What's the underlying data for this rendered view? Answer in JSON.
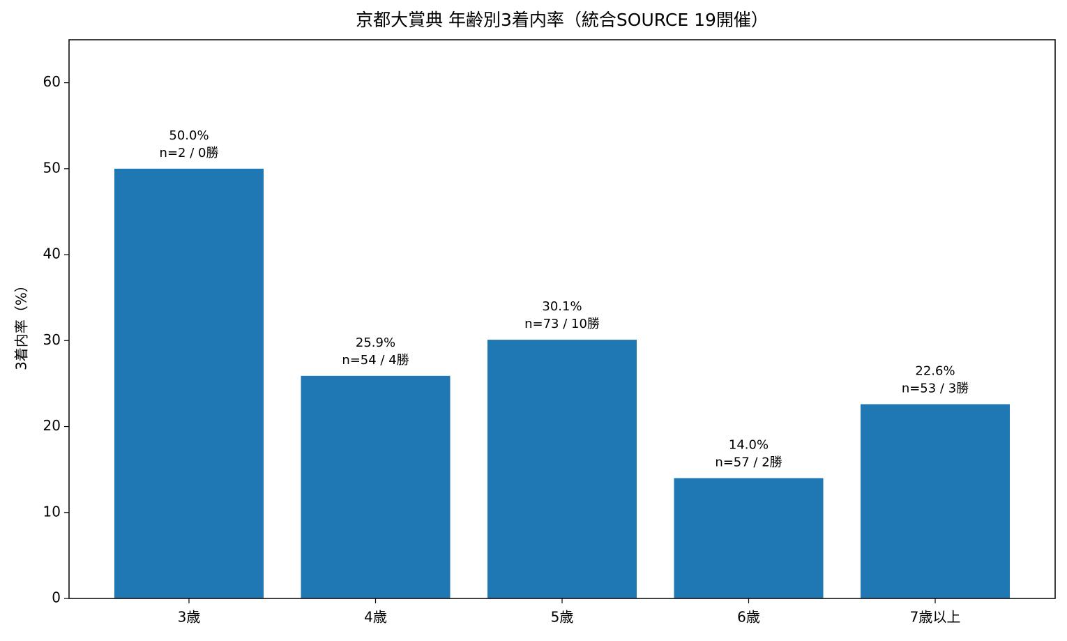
{
  "chart_data": {
    "type": "bar",
    "title": "京都大賞典 年齢別3着内率（統合SOURCE 19開催）",
    "y_label": "3着内率（%）",
    "categories": [
      "3歳",
      "4歳",
      "5歳",
      "6歳",
      "7歳以上"
    ],
    "values": [
      50.0,
      25.9,
      30.1,
      14.0,
      22.6
    ],
    "value_labels": [
      "50.0%",
      "25.9%",
      "30.1%",
      "14.0%",
      "22.6%"
    ],
    "annotations": [
      "n=2 / 0勝",
      "n=54 / 4勝",
      "n=73 / 10勝",
      "n=57 / 2勝",
      "n=53 / 3勝"
    ],
    "color": "#1f77b4",
    "ylim": [
      0,
      65
    ],
    "yticks": [
      0,
      10,
      20,
      30,
      40,
      50,
      60
    ],
    "grid": false
  }
}
